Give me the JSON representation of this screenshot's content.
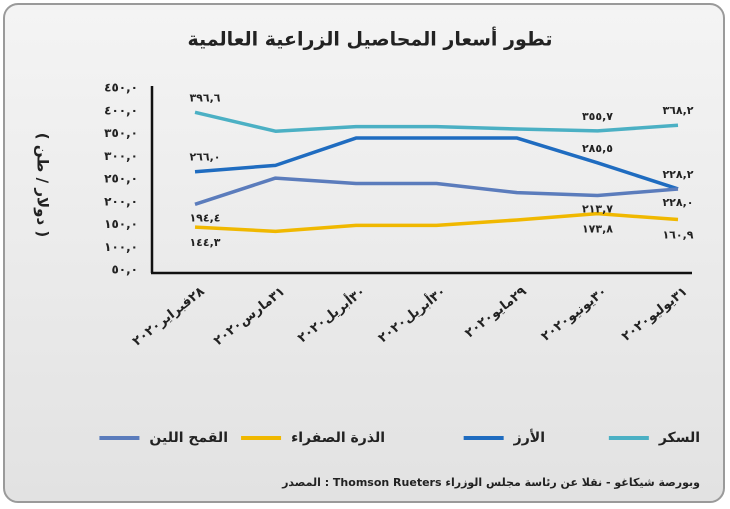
{
  "chart_data": {
    "type": "line",
    "title": "تطور أسعار المحاصيل الزراعية العالمية",
    "y_label": "( دولار / طن )",
    "source": "المصدر :  Thomson Rueters  وبورصة شيكاغو - نقلا عن رئاسة مجلس الوزراء",
    "categories": [
      "٢٨فبراير٢٠٢٠",
      "٣١مارس٢٠٢٠",
      "٣٠أبريل٢٠٢٠",
      "٣٠أبريل٢٠٢٠",
      "٢٩مايو٢٠٢٠",
      "٣٠يونيو٢٠٢٠",
      "٣١يوليو٢٠٢٠"
    ],
    "ylim": [
      50,
      450
    ],
    "yticks": [
      {
        "value": 50,
        "label": "٥٠,٠"
      },
      {
        "value": 100,
        "label": "١٠٠,٠"
      },
      {
        "value": 150,
        "label": "١٥٠,٠"
      },
      {
        "value": 200,
        "label": "٢٠٠,٠"
      },
      {
        "value": 250,
        "label": "٢٥٠,٠"
      },
      {
        "value": 300,
        "label": "٣٠٠,٠"
      },
      {
        "value": 350,
        "label": "٣٥٠,٠"
      },
      {
        "value": 400,
        "label": "٤٠٠,٠"
      },
      {
        "value": 450,
        "label": "٤٥٠,٠"
      }
    ],
    "series": [
      {
        "name": "السكر",
        "color": "#4bb0c4",
        "values": [
          396.6,
          355,
          365,
          365,
          360,
          355.7,
          368.2
        ],
        "value_labels": [
          "٣٩٦,٦",
          null,
          null,
          null,
          null,
          "٣٥٥,٧",
          "٣٦٨,٢"
        ]
      },
      {
        "name": "الأرز",
        "color": "#1f6cc0",
        "values": [
          266.0,
          280,
          340,
          340,
          340,
          285.5,
          228.2
        ],
        "value_labels": [
          "٢٦٦,٠",
          null,
          null,
          null,
          null,
          "٢٨٥,٥",
          "٢٢٨,٢"
        ]
      },
      {
        "name": "الذرة الصفراء",
        "color": "#f0b800",
        "values": [
          144.3,
          135,
          148,
          148,
          160,
          173.8,
          160.9
        ],
        "value_labels": [
          "١٤٤,٣",
          null,
          null,
          null,
          null,
          "١٧٣,٨",
          "١٦٠,٩"
        ]
      },
      {
        "name": "القمح اللين",
        "color": "#5b7cbc",
        "values": [
          194.4,
          252,
          240,
          240,
          220,
          213.7,
          228.0
        ],
        "value_labels": [
          "١٩٤,٤",
          null,
          null,
          null,
          null,
          "٢١٣,٧",
          "٢٢٨,٠"
        ]
      }
    ]
  }
}
